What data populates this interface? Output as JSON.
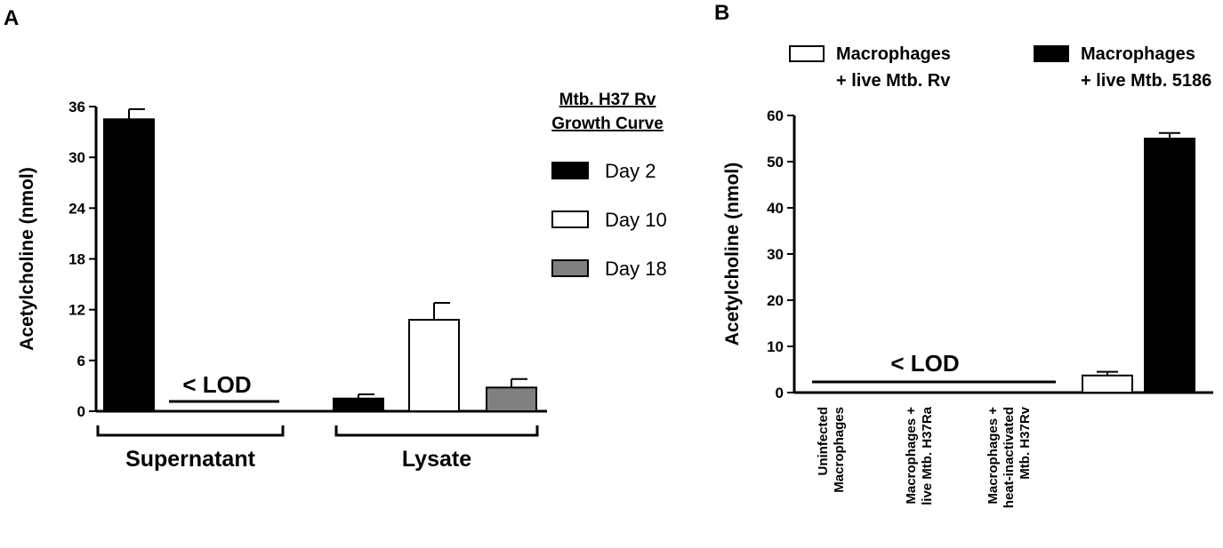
{
  "panel_a_letter": "A",
  "panel_b_letter": "B",
  "chart_data": [
    {
      "type": "bar",
      "ylabel": "Acetylcholine (nmol)",
      "ylim": [
        0,
        36
      ],
      "yticks": [
        0,
        6,
        12,
        18,
        24,
        30,
        36
      ],
      "legend_title_lines": [
        "Mtb. H37 Rv",
        "Growth Curve"
      ],
      "legend_placement": "right",
      "series": [
        {
          "name": "Day 2",
          "color": "#000000"
        },
        {
          "name": "Day 10",
          "color": "#ffffff"
        },
        {
          "name": "Day 18",
          "color": "#808080"
        }
      ],
      "groups": [
        {
          "label": "Supernatant",
          "bars": [
            {
              "series": 0,
              "value": 34.5,
              "error": 1.2
            }
          ],
          "annotation": "< LOD"
        },
        {
          "label": "Lysate",
          "bars": [
            {
              "series": 0,
              "value": 1.5,
              "error": 0.5
            },
            {
              "series": 1,
              "value": 10.8,
              "error": 2.0
            },
            {
              "series": 2,
              "value": 2.8,
              "error": 1.0
            }
          ]
        }
      ]
    },
    {
      "type": "bar",
      "ylabel": "Acetylcholine (nmol)",
      "ylim": [
        0,
        60
      ],
      "yticks": [
        0,
        10,
        20,
        30,
        40,
        50,
        60
      ],
      "legend_placement": "top",
      "legend": [
        {
          "lines": [
            "Macrophages",
            "+ live Mtb. Rv"
          ],
          "color": "#ffffff"
        },
        {
          "lines": [
            "Macrophages",
            "+ live Mtb. 5186"
          ],
          "color": "#000000"
        }
      ],
      "categories": [
        [
          "Uninfected",
          "Macrophages"
        ],
        [
          "Macrophages +",
          "live Mtb. H37Ra"
        ],
        [
          "Macrophages +",
          "heat-inactivated",
          "Mtb. H37Rv"
        ]
      ],
      "annotation": "< LOD",
      "bars": [
        {
          "value": 3.7,
          "error": 0.8,
          "color": "#ffffff"
        },
        {
          "value": 55.0,
          "error": 1.2,
          "color": "#000000"
        }
      ]
    }
  ]
}
